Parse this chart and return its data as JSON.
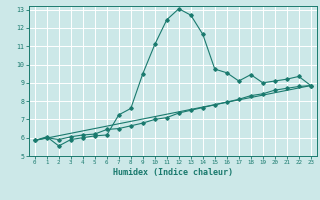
{
  "title": "",
  "xlabel": "Humidex (Indice chaleur)",
  "bg_color": "#cce8e8",
  "grid_color": "#ffffff",
  "line_color": "#1a7a6e",
  "xlim": [
    -0.5,
    23.5
  ],
  "ylim": [
    5,
    13.2
  ],
  "xticks": [
    0,
    1,
    2,
    3,
    4,
    5,
    6,
    7,
    8,
    9,
    10,
    11,
    12,
    13,
    14,
    15,
    16,
    17,
    18,
    19,
    20,
    21,
    22,
    23
  ],
  "yticks": [
    5,
    6,
    7,
    8,
    9,
    10,
    11,
    12,
    13
  ],
  "line1_x": [
    0,
    1,
    2,
    3,
    4,
    5,
    6,
    7,
    8,
    9,
    10,
    11,
    12,
    13,
    14,
    15,
    16,
    17,
    18,
    19,
    20,
    21,
    22,
    23
  ],
  "line1_y": [
    5.85,
    6.05,
    5.55,
    5.9,
    6.0,
    6.1,
    6.15,
    7.25,
    7.6,
    9.5,
    11.1,
    12.45,
    13.05,
    12.7,
    11.65,
    9.75,
    9.55,
    9.1,
    9.45,
    9.0,
    9.1,
    9.2,
    9.35,
    8.85
  ],
  "line2_x": [
    0,
    1,
    2,
    3,
    4,
    5,
    6,
    7,
    8,
    9,
    10,
    11,
    12,
    13,
    14,
    15,
    16,
    17,
    18,
    19,
    20,
    21,
    22,
    23
  ],
  "line2_y": [
    5.85,
    6.0,
    5.9,
    6.05,
    6.15,
    6.2,
    6.45,
    6.5,
    6.65,
    6.8,
    7.0,
    7.1,
    7.35,
    7.5,
    7.65,
    7.8,
    7.95,
    8.1,
    8.3,
    8.4,
    8.6,
    8.7,
    8.8,
    8.85
  ],
  "line3_x": [
    0,
    23
  ],
  "line3_y": [
    5.85,
    8.85
  ]
}
